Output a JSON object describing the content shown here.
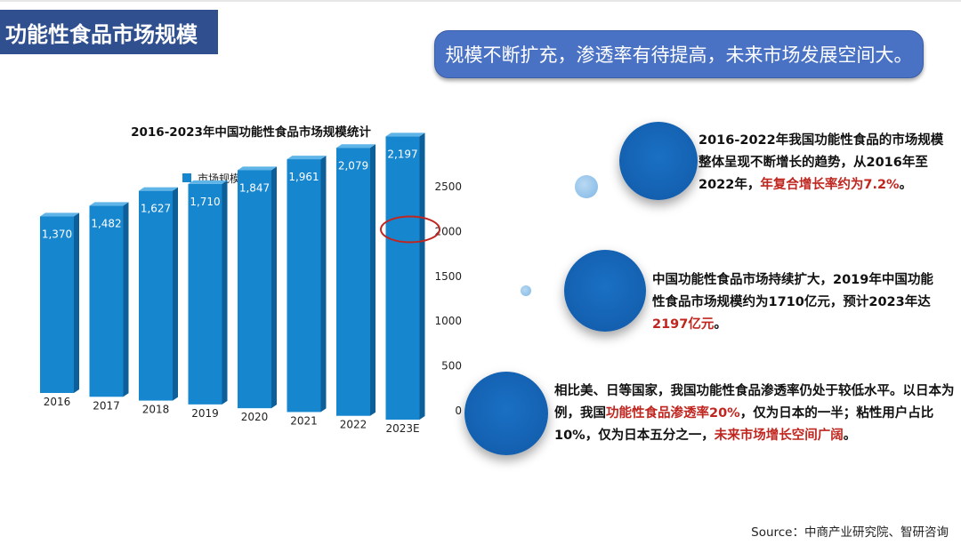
{
  "page": {
    "title": "功能性食品市场规模",
    "summary": "规模不断扩充，渗透率有待提高，未来市场发展空间大。",
    "source": "Source：中商产业研究院、智研咨询"
  },
  "colors": {
    "title_bar": "#2f4f8f",
    "pill": "#4a72c4",
    "bar": "#1686cf",
    "bullet": "#1460b0",
    "highlight_red": "#c0261f"
  },
  "points": [
    {
      "parts": [
        {
          "text": "2016-2022年我国功能性食品的市场规模整体呈现不断增长的趋势，从2016年至2022年，",
          "highlight": false
        },
        {
          "text": "年复合增长率约为7.2%",
          "highlight": true
        },
        {
          "text": "。",
          "highlight": false
        }
      ]
    },
    {
      "parts": [
        {
          "text": "中国功能性食品市场持续扩大，2019年中国功能性食品市场规模约为1710亿元，预计2023年达",
          "highlight": false
        },
        {
          "text": "2197亿元",
          "highlight": true
        },
        {
          "text": "。",
          "highlight": false
        }
      ]
    },
    {
      "parts": [
        {
          "text": "相比美、日等国家，我国功能性食品渗透率仍处于较低水平。以日本为例，我国",
          "highlight": false
        },
        {
          "text": "功能性食品渗透率20%",
          "highlight": true
        },
        {
          "text": "，仅为日本的一半；粘性用户占比10%，仅为日本五分之一，",
          "highlight": false
        },
        {
          "text": "未来市场增长空间广阔",
          "highlight": true
        },
        {
          "text": "。",
          "highlight": false
        }
      ]
    }
  ],
  "chart_data": {
    "type": "bar",
    "title": "2016-2023年中国功能性食品市场规模统计",
    "legend": [
      "市场规模：亿元"
    ],
    "legend_position": "top-left",
    "categories": [
      "2016",
      "2017",
      "2018",
      "2019",
      "2020",
      "2021",
      "2022",
      "2023E"
    ],
    "series": [
      {
        "name": "市场规模：亿元",
        "values": [
          1370,
          1482,
          1627,
          1710,
          1847,
          1961,
          2079,
          2197
        ]
      }
    ],
    "value_labels": [
      "1,370",
      "1,482",
      "1,627",
      "1,710",
      "1,847",
      "1,961",
      "2,079",
      "2,197"
    ],
    "y_ticks": [
      "0",
      "500",
      "1000",
      "1500",
      "2000",
      "2500"
    ],
    "ylim": [
      0,
      2500
    ],
    "y_axis_position": "right",
    "grid": false,
    "highlighted_category": "2023E"
  }
}
